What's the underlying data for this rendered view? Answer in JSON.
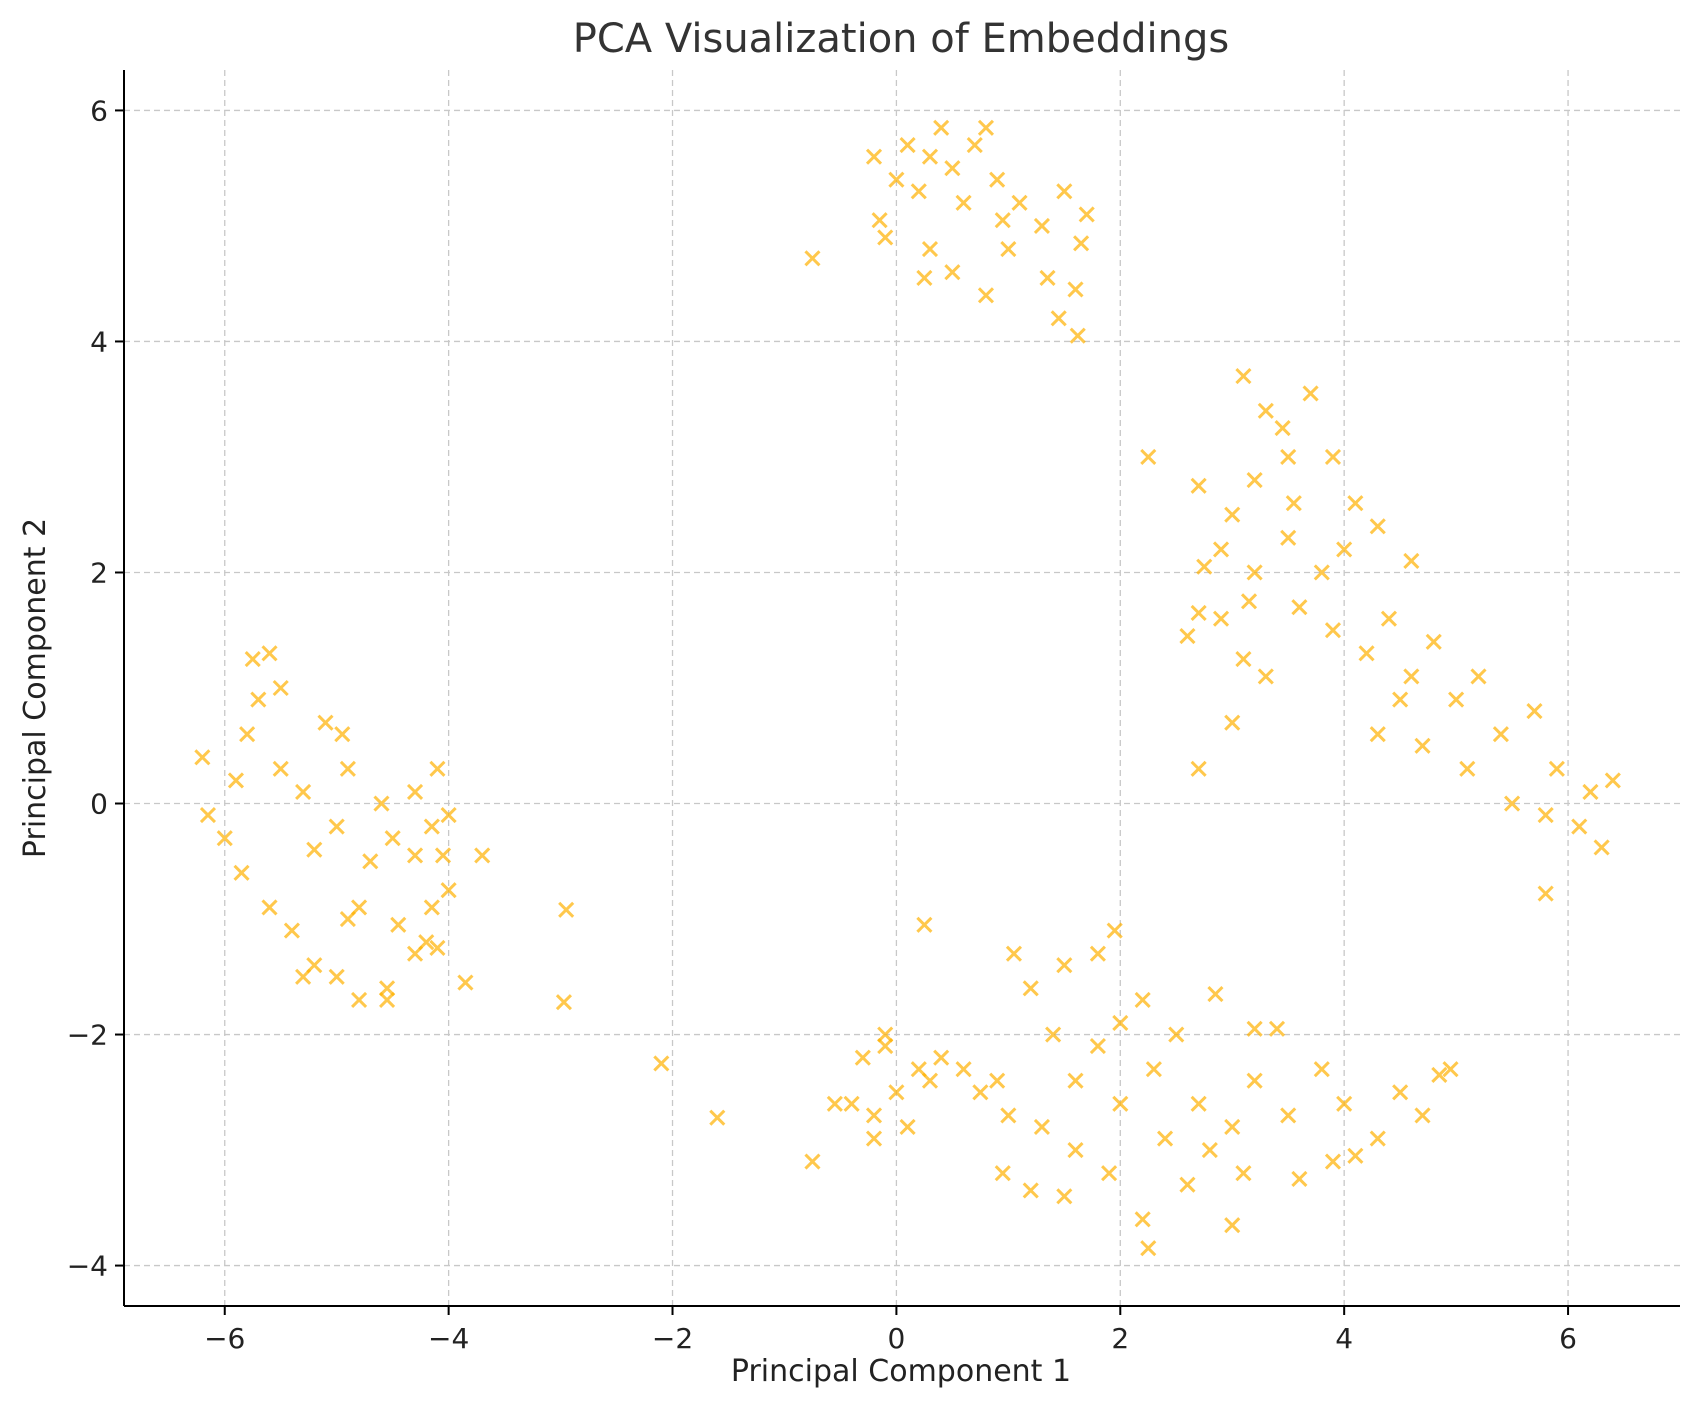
{
  "chart_data": {
    "type": "scatter",
    "title": "PCA Visualization of Embeddings",
    "xlabel": "Principal Component 1",
    "ylabel": "Principal Component 2",
    "xlim": [
      -6.9,
      7.0
    ],
    "ylim": [
      -4.35,
      6.35
    ],
    "xticks": [
      -6,
      -4,
      -2,
      0,
      2,
      4,
      6
    ],
    "yticks": [
      -4,
      -2,
      0,
      2,
      4,
      6
    ],
    "xtick_labels": [
      "−6",
      "−4",
      "−2",
      "0",
      "2",
      "4",
      "6"
    ],
    "ytick_labels": [
      "−4",
      "−2",
      "0",
      "2",
      "4",
      "6"
    ],
    "grid": true,
    "marker": "x",
    "color": "#FFB000",
    "marker_alpha": 0.7,
    "series": [
      {
        "values": [
          {
            "x": -5.9,
            "y": 0.2
          },
          {
            "x": -5.8,
            "y": 0.6
          },
          {
            "x": -5.7,
            "y": 0.9
          },
          {
            "x": -6.0,
            "y": -0.3
          },
          {
            "x": -5.85,
            "y": -0.6
          },
          {
            "x": -5.6,
            "y": -0.9
          },
          {
            "x": -5.4,
            "y": -1.1
          },
          {
            "x": -6.2,
            "y": 0.4
          },
          {
            "x": -6.15,
            "y": -0.1
          },
          {
            "x": -5.5,
            "y": 0.3
          },
          {
            "x": -5.3,
            "y": 0.1
          },
          {
            "x": -5.2,
            "y": -0.4
          },
          {
            "x": -5.0,
            "y": -0.2
          },
          {
            "x": -4.9,
            "y": 0.3
          },
          {
            "x": -4.7,
            "y": -0.5
          },
          {
            "x": -4.6,
            "y": 0.0
          },
          {
            "x": -4.5,
            "y": -0.3
          },
          {
            "x": -5.75,
            "y": 1.25
          },
          {
            "x": -5.6,
            "y": 1.3
          },
          {
            "x": -5.5,
            "y": 1.0
          },
          {
            "x": -5.1,
            "y": 0.7
          },
          {
            "x": -4.95,
            "y": 0.6
          },
          {
            "x": -4.3,
            "y": 0.1
          },
          {
            "x": -4.1,
            "y": 0.3
          },
          {
            "x": -4.0,
            "y": -0.1
          },
          {
            "x": -4.15,
            "y": -0.2
          },
          {
            "x": -4.3,
            "y": -0.45
          },
          {
            "x": -4.05,
            "y": -0.45
          },
          {
            "x": -3.7,
            "y": -0.45
          },
          {
            "x": -4.0,
            "y": -0.75
          },
          {
            "x": -4.15,
            "y": -0.9
          },
          {
            "x": -4.45,
            "y": -1.05
          },
          {
            "x": -4.2,
            "y": -1.2
          },
          {
            "x": -4.3,
            "y": -1.3
          },
          {
            "x": -4.1,
            "y": -1.25
          },
          {
            "x": -3.85,
            "y": -1.55
          },
          {
            "x": -4.55,
            "y": -1.6
          },
          {
            "x": -4.55,
            "y": -1.7
          },
          {
            "x": -4.8,
            "y": -1.7
          },
          {
            "x": -5.0,
            "y": -1.5
          },
          {
            "x": -5.2,
            "y": -1.4
          },
          {
            "x": -5.3,
            "y": -1.5
          },
          {
            "x": -4.9,
            "y": -1.0
          },
          {
            "x": -4.8,
            "y": -0.9
          },
          {
            "x": -2.95,
            "y": -0.92
          },
          {
            "x": -2.97,
            "y": -1.72
          },
          {
            "x": -2.1,
            "y": -2.25
          },
          {
            "x": -1.6,
            "y": -2.72
          },
          {
            "x": -0.75,
            "y": -3.1
          },
          {
            "x": -0.75,
            "y": 4.72
          },
          {
            "x": 0.3,
            "y": 5.6
          },
          {
            "x": 0.5,
            "y": 5.5
          },
          {
            "x": 0.7,
            "y": 5.7
          },
          {
            "x": 0.1,
            "y": 5.7
          },
          {
            "x": -0.2,
            "y": 5.6
          },
          {
            "x": 0.2,
            "y": 5.3
          },
          {
            "x": 0.6,
            "y": 5.2
          },
          {
            "x": 0.9,
            "y": 5.4
          },
          {
            "x": 1.1,
            "y": 5.2
          },
          {
            "x": 1.3,
            "y": 5.0
          },
          {
            "x": 1.5,
            "y": 5.3
          },
          {
            "x": 0.4,
            "y": 5.85
          },
          {
            "x": 0.8,
            "y": 5.85
          },
          {
            "x": 0.0,
            "y": 5.4
          },
          {
            "x": -0.1,
            "y": 4.9
          },
          {
            "x": 0.3,
            "y": 4.8
          },
          {
            "x": 0.5,
            "y": 4.6
          },
          {
            "x": 0.8,
            "y": 4.4
          },
          {
            "x": 1.0,
            "y": 4.8
          },
          {
            "x": 1.35,
            "y": 4.55
          },
          {
            "x": 1.6,
            "y": 4.45
          },
          {
            "x": 1.65,
            "y": 4.85
          },
          {
            "x": 1.7,
            "y": 5.1
          },
          {
            "x": 1.45,
            "y": 4.2
          },
          {
            "x": 1.62,
            "y": 4.05
          },
          {
            "x": 0.25,
            "y": 4.55
          },
          {
            "x": -0.15,
            "y": 5.05
          },
          {
            "x": 0.95,
            "y": 5.05
          },
          {
            "x": 3.1,
            "y": 3.7
          },
          {
            "x": 3.3,
            "y": 3.4
          },
          {
            "x": 3.5,
            "y": 3.0
          },
          {
            "x": 3.7,
            "y": 3.55
          },
          {
            "x": 3.9,
            "y": 3.0
          },
          {
            "x": 3.2,
            "y": 2.8
          },
          {
            "x": 3.0,
            "y": 2.5
          },
          {
            "x": 2.9,
            "y": 2.2
          },
          {
            "x": 3.2,
            "y": 2.0
          },
          {
            "x": 3.5,
            "y": 2.3
          },
          {
            "x": 3.8,
            "y": 2.0
          },
          {
            "x": 4.1,
            "y": 2.6
          },
          {
            "x": 4.3,
            "y": 2.4
          },
          {
            "x": 4.6,
            "y": 2.1
          },
          {
            "x": 3.6,
            "y": 1.7
          },
          {
            "x": 3.9,
            "y": 1.5
          },
          {
            "x": 4.2,
            "y": 1.3
          },
          {
            "x": 4.4,
            "y": 1.6
          },
          {
            "x": 4.6,
            "y": 1.1
          },
          {
            "x": 4.8,
            "y": 1.4
          },
          {
            "x": 5.0,
            "y": 0.9
          },
          {
            "x": 5.2,
            "y": 1.1
          },
          {
            "x": 4.3,
            "y": 0.6
          },
          {
            "x": 4.7,
            "y": 0.5
          },
          {
            "x": 5.1,
            "y": 0.3
          },
          {
            "x": 5.4,
            "y": 0.6
          },
          {
            "x": 5.7,
            "y": 0.8
          },
          {
            "x": 5.9,
            "y": 0.3
          },
          {
            "x": 6.2,
            "y": 0.1
          },
          {
            "x": 6.4,
            "y": 0.2
          },
          {
            "x": 6.1,
            "y": -0.2
          },
          {
            "x": 5.8,
            "y": -0.1
          },
          {
            "x": 6.3,
            "y": -0.38
          },
          {
            "x": 5.8,
            "y": -0.78
          },
          {
            "x": 3.0,
            "y": 0.7
          },
          {
            "x": 2.7,
            "y": 0.3
          },
          {
            "x": 2.6,
            "y": 1.45
          },
          {
            "x": 2.7,
            "y": 1.65
          },
          {
            "x": 2.9,
            "y": 1.6
          },
          {
            "x": 3.1,
            "y": 1.25
          },
          {
            "x": 3.3,
            "y": 1.1
          },
          {
            "x": 2.75,
            "y": 2.05
          },
          {
            "x": 2.7,
            "y": 2.75
          },
          {
            "x": 2.25,
            "y": 3.0
          },
          {
            "x": 3.15,
            "y": 1.75
          },
          {
            "x": 3.55,
            "y": 2.6
          },
          {
            "x": 3.45,
            "y": 3.25
          },
          {
            "x": 4.0,
            "y": 2.2
          },
          {
            "x": 4.5,
            "y": 0.9
          },
          {
            "x": 5.5,
            "y": 0.0
          },
          {
            "x": 1.2,
            "y": -1.6
          },
          {
            "x": 1.5,
            "y": -1.4
          },
          {
            "x": 1.8,
            "y": -1.3
          },
          {
            "x": 1.95,
            "y": -1.1
          },
          {
            "x": 2.2,
            "y": -1.7
          },
          {
            "x": 1.4,
            "y": -2.0
          },
          {
            "x": 1.6,
            "y": -2.4
          },
          {
            "x": 1.8,
            "y": -2.1
          },
          {
            "x": 2.0,
            "y": -2.6
          },
          {
            "x": 2.3,
            "y": -2.3
          },
          {
            "x": 2.5,
            "y": -2.0
          },
          {
            "x": 1.3,
            "y": -2.8
          },
          {
            "x": 1.6,
            "y": -3.0
          },
          {
            "x": 1.9,
            "y": -3.2
          },
          {
            "x": 2.4,
            "y": -2.9
          },
          {
            "x": 2.7,
            "y": -2.6
          },
          {
            "x": 3.0,
            "y": -2.8
          },
          {
            "x": 3.2,
            "y": -2.4
          },
          {
            "x": 3.5,
            "y": -2.7
          },
          {
            "x": 3.8,
            "y": -2.3
          },
          {
            "x": 4.0,
            "y": -2.6
          },
          {
            "x": 4.3,
            "y": -2.9
          },
          {
            "x": 4.5,
            "y": -2.5
          },
          {
            "x": 4.7,
            "y": -2.7
          },
          {
            "x": 4.95,
            "y": -2.3
          },
          {
            "x": 4.85,
            "y": -2.35
          },
          {
            "x": 2.8,
            "y": -3.0
          },
          {
            "x": 3.1,
            "y": -3.2
          },
          {
            "x": 2.6,
            "y": -3.3
          },
          {
            "x": 3.0,
            "y": -3.65
          },
          {
            "x": 2.2,
            "y": -3.6
          },
          {
            "x": 2.25,
            "y": -3.85
          },
          {
            "x": 1.5,
            "y": -3.4
          },
          {
            "x": 1.2,
            "y": -3.35
          },
          {
            "x": 0.95,
            "y": -3.2
          },
          {
            "x": 1.0,
            "y": -2.7
          },
          {
            "x": 0.9,
            "y": -2.4
          },
          {
            "x": 0.6,
            "y": -2.3
          },
          {
            "x": 0.75,
            "y": -2.5
          },
          {
            "x": 1.05,
            "y": -1.3
          },
          {
            "x": 0.2,
            "y": -2.3
          },
          {
            "x": -0.1,
            "y": -2.1
          },
          {
            "x": 0.0,
            "y": -2.5
          },
          {
            "x": 0.3,
            "y": -2.4
          },
          {
            "x": -0.3,
            "y": -2.2
          },
          {
            "x": -0.2,
            "y": -2.7
          },
          {
            "x": 0.1,
            "y": -2.8
          },
          {
            "x": -0.2,
            "y": -2.9
          },
          {
            "x": -0.4,
            "y": -2.6
          },
          {
            "x": -0.55,
            "y": -2.6
          },
          {
            "x": -0.1,
            "y": -2.0
          },
          {
            "x": 0.4,
            "y": -2.2
          },
          {
            "x": 0.25,
            "y": -1.05
          },
          {
            "x": 3.2,
            "y": -1.95
          },
          {
            "x": 3.4,
            "y": -1.95
          },
          {
            "x": 2.85,
            "y": -1.65
          },
          {
            "x": 3.9,
            "y": -3.1
          },
          {
            "x": 4.1,
            "y": -3.05
          },
          {
            "x": 3.6,
            "y": -3.25
          },
          {
            "x": 2.0,
            "y": -1.9
          }
        ]
      }
    ]
  }
}
